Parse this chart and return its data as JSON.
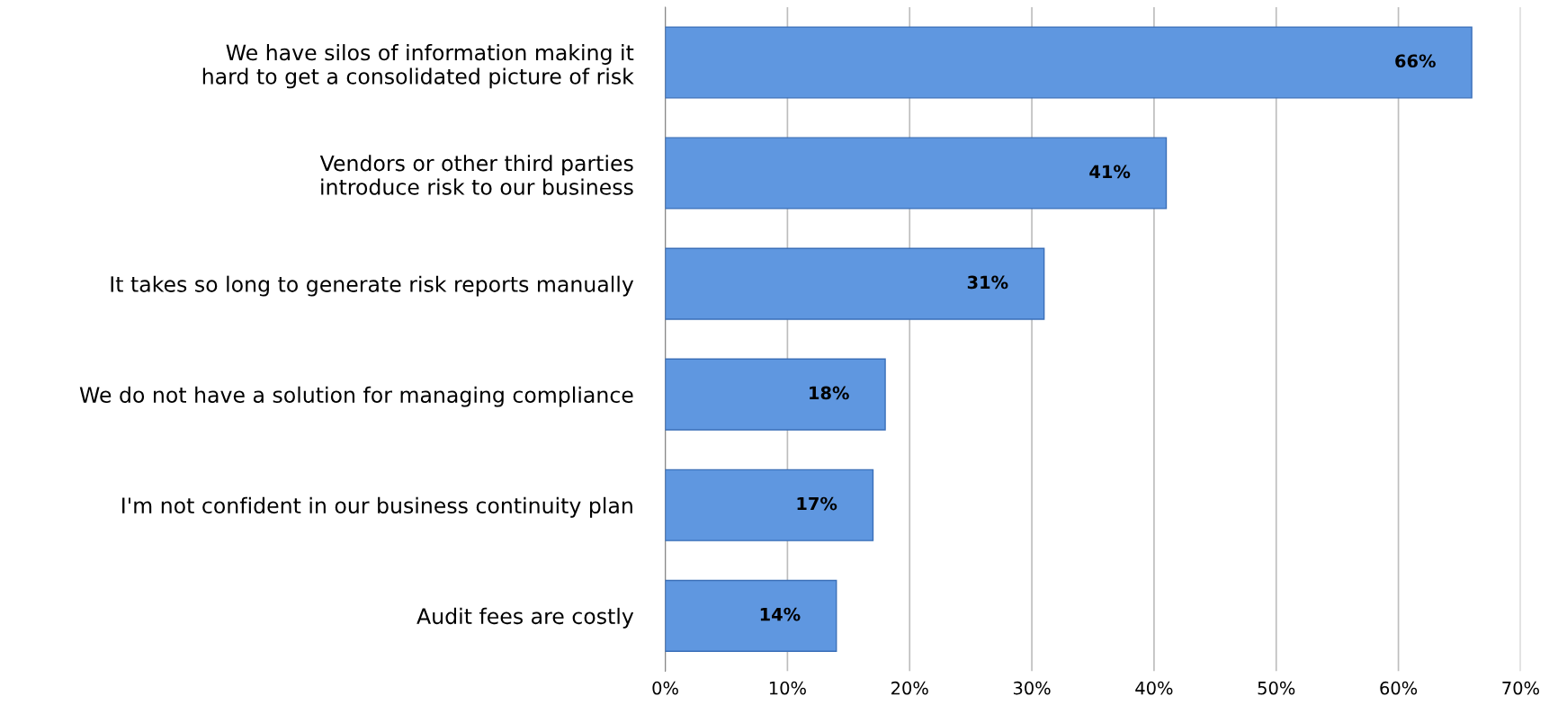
{
  "chart_data": {
    "type": "bar",
    "orientation": "horizontal",
    "categories": [
      "We have silos of information making it\nhard to get a consolidated picture of risk",
      "Vendors or other third parties\nintroduce risk to our business",
      "It takes so long to generate risk reports manually",
      "We do not have a solution for managing compliance",
      "I'm not confident in our business continuity plan",
      "Audit fees are costly"
    ],
    "values": [
      66,
      41,
      31,
      18,
      17,
      14
    ],
    "value_labels": [
      "66%",
      "41%",
      "31%",
      "18%",
      "17%",
      "14%"
    ],
    "color": "#5f97e0",
    "xlim": [
      0,
      70
    ],
    "xticks": [
      {
        "value": 0,
        "label": "0%"
      },
      {
        "value": 10,
        "label": "10%"
      },
      {
        "value": 20,
        "label": "20%"
      },
      {
        "value": 30,
        "label": "30%"
      },
      {
        "value": 40,
        "label": "40%"
      },
      {
        "value": 50,
        "label": "50%"
      },
      {
        "value": 60,
        "label": "60%"
      },
      {
        "value": 70,
        "label": "70%"
      }
    ],
    "grid": "x"
  }
}
